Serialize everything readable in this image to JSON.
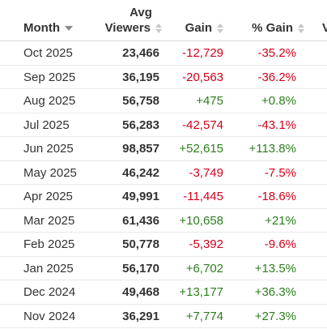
{
  "table": {
    "headers": {
      "month": "Month",
      "viewers_line1": "Avg",
      "viewers_line2": "Viewers",
      "gain": "Gain",
      "pct_gain": "% Gain",
      "extra": "V"
    },
    "rows": [
      {
        "month": "Oct 2025",
        "viewers": "23,466",
        "gain": "-12,729",
        "pct_gain": "-35.2%",
        "trend": "neg"
      },
      {
        "month": "Sep 2025",
        "viewers": "36,195",
        "gain": "-20,563",
        "pct_gain": "-36.2%",
        "trend": "neg"
      },
      {
        "month": "Aug 2025",
        "viewers": "56,758",
        "gain": "+475",
        "pct_gain": "+0.8%",
        "trend": "pos"
      },
      {
        "month": "Jul 2025",
        "viewers": "56,283",
        "gain": "-42,574",
        "pct_gain": "-43.1%",
        "trend": "neg"
      },
      {
        "month": "Jun 2025",
        "viewers": "98,857",
        "gain": "+52,615",
        "pct_gain": "+113.8%",
        "trend": "pos"
      },
      {
        "month": "May 2025",
        "viewers": "46,242",
        "gain": "-3,749",
        "pct_gain": "-7.5%",
        "trend": "neg"
      },
      {
        "month": "Apr 2025",
        "viewers": "49,991",
        "gain": "-11,445",
        "pct_gain": "-18.6%",
        "trend": "neg"
      },
      {
        "month": "Mar 2025",
        "viewers": "61,436",
        "gain": "+10,658",
        "pct_gain": "+21%",
        "trend": "pos"
      },
      {
        "month": "Feb 2025",
        "viewers": "50,778",
        "gain": "-5,392",
        "pct_gain": "-9.6%",
        "trend": "neg"
      },
      {
        "month": "Jan 2025",
        "viewers": "56,170",
        "gain": "+6,702",
        "pct_gain": "+13.5%",
        "trend": "pos"
      },
      {
        "month": "Dec 2024",
        "viewers": "49,468",
        "gain": "+13,177",
        "pct_gain": "+36.3%",
        "trend": "pos"
      },
      {
        "month": "Nov 2024",
        "viewers": "36,291",
        "gain": "+7,774",
        "pct_gain": "+27.3%",
        "trend": "pos"
      }
    ]
  },
  "colors": {
    "negative": "#d0021b",
    "positive": "#2e7d1f",
    "text": "#333333"
  },
  "icons": {
    "month_sort": "caret-down-icon",
    "column_sort": "sort-both-icon"
  }
}
